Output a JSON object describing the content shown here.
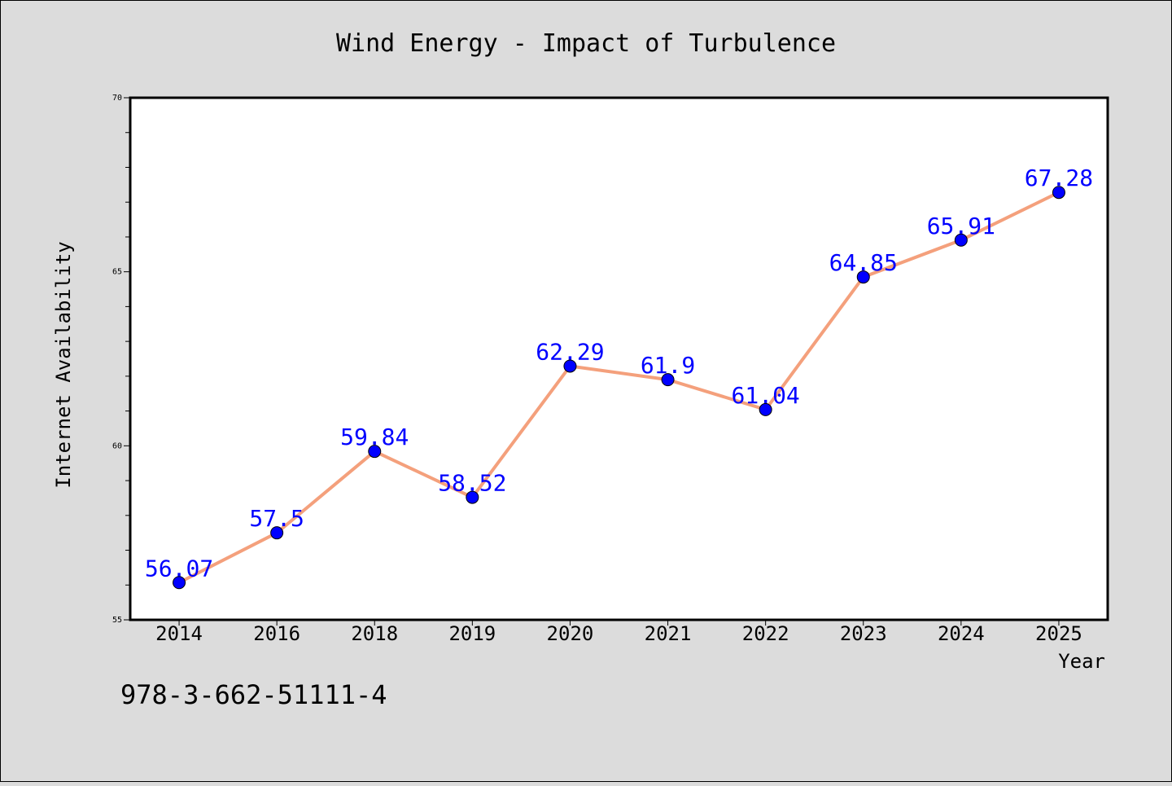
{
  "chart_data": {
    "type": "line",
    "title": "Wind Energy - Impact of Turbulence",
    "xlabel": "Year",
    "ylabel": "Internet Availability",
    "categories": [
      "2014",
      "2016",
      "2018",
      "2019",
      "2020",
      "2021",
      "2022",
      "2023",
      "2024",
      "2025"
    ],
    "series": [
      {
        "values": [
          56.07,
          57.5,
          59.84,
          58.52,
          62.29,
          61.9,
          61.04,
          64.85,
          65.91,
          67.28
        ],
        "labels": [
          "56.07",
          "57.5",
          "59.84",
          "58.52",
          "62.29",
          "61.9",
          "61.04",
          "64.85",
          "65.91",
          "67.28"
        ],
        "line_color": "#f4a07c",
        "marker_color": "#0000ff",
        "label_color": "#0000ff"
      }
    ],
    "ylim": [
      55,
      70
    ],
    "y_major_ticks": [
      55,
      60,
      65,
      70
    ],
    "y_minor_step": 1,
    "grid": false,
    "legend": "none"
  },
  "footer": {
    "code": "978-3-662-51111-4"
  },
  "colors": {
    "background": "#dcdcdc",
    "plot_background": "#ffffff"
  }
}
